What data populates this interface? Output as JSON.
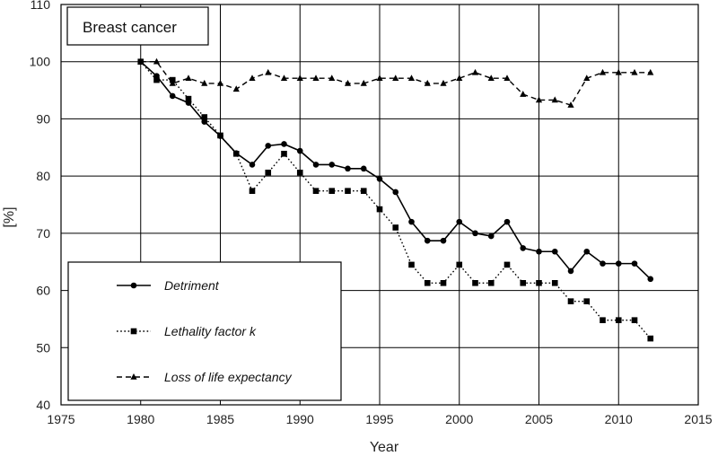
{
  "chart_data": {
    "type": "line",
    "title": "Breast cancer",
    "xlabel": "Year",
    "ylabel": "[%]",
    "xlim": [
      1975,
      2015
    ],
    "ylim": [
      40,
      110
    ],
    "xticks": [
      1975,
      1980,
      1985,
      1990,
      1995,
      2000,
      2005,
      2010,
      2015
    ],
    "yticks": [
      40,
      50,
      60,
      70,
      80,
      90,
      100,
      110
    ],
    "grid": true,
    "legend_position": "lower-left",
    "series": [
      {
        "name": "Detriment",
        "style": "solid",
        "marker": "circle",
        "color": "#000000",
        "x": [
          1980,
          1981,
          1982,
          1983,
          1984,
          1985,
          1986,
          1987,
          1988,
          1989,
          1990,
          1991,
          1992,
          1993,
          1994,
          1995,
          1996,
          1997,
          1998,
          1999,
          2000,
          2001,
          2002,
          2003,
          2004,
          2005,
          2006,
          2007,
          2008,
          2009,
          2010,
          2011,
          2012
        ],
        "values": [
          100,
          97.5,
          94,
          92.8,
          89.5,
          87,
          84,
          82,
          85.3,
          85.6,
          84.4,
          82,
          82,
          81.3,
          81.3,
          79.5,
          77.2,
          72,
          68.7,
          68.7,
          72,
          70,
          69.5,
          72,
          67.4,
          66.8,
          66.8,
          63.4,
          66.8,
          64.7,
          64.7,
          64.7,
          62
        ]
      },
      {
        "name": "Lethality factor k",
        "style": "dotted",
        "marker": "square",
        "color": "#000000",
        "x": [
          1980,
          1981,
          1982,
          1983,
          1984,
          1985,
          1986,
          1987,
          1988,
          1989,
          1990,
          1991,
          1992,
          1993,
          1994,
          1995,
          1996,
          1997,
          1998,
          1999,
          2000,
          2001,
          2002,
          2003,
          2004,
          2005,
          2006,
          2007,
          2008,
          2009,
          2010,
          2011,
          2012
        ],
        "values": [
          100,
          96.8,
          96.8,
          93.5,
          90.3,
          87.1,
          83.9,
          77.4,
          80.6,
          83.9,
          80.6,
          77.4,
          77.4,
          77.4,
          77.4,
          74.2,
          71,
          64.5,
          61.3,
          61.3,
          64.5,
          61.3,
          61.3,
          64.5,
          61.3,
          61.3,
          61.3,
          58.1,
          58.1,
          54.8,
          54.8,
          54.8,
          51.6
        ]
      },
      {
        "name": "Loss of life expectancy",
        "style": "dashed",
        "marker": "triangle",
        "color": "#000000",
        "x": [
          1980,
          1981,
          1982,
          1983,
          1984,
          1985,
          1986,
          1987,
          1988,
          1989,
          1990,
          1991,
          1992,
          1993,
          1994,
          1995,
          1996,
          1997,
          1998,
          1999,
          2000,
          2001,
          2002,
          2003,
          2004,
          2005,
          2006,
          2007,
          2008,
          2009,
          2010,
          2011,
          2012
        ],
        "values": [
          100,
          100,
          96.2,
          97.1,
          96.2,
          96.2,
          95.2,
          97.1,
          98.1,
          97.1,
          97.1,
          97.1,
          97.1,
          96.2,
          96.2,
          97.1,
          97.1,
          97.1,
          96.2,
          96.2,
          97.1,
          98.1,
          97.1,
          97.1,
          94.3,
          93.3,
          93.3,
          92.4,
          97.1,
          98.1,
          98.1,
          98.1,
          98.1
        ]
      }
    ]
  }
}
